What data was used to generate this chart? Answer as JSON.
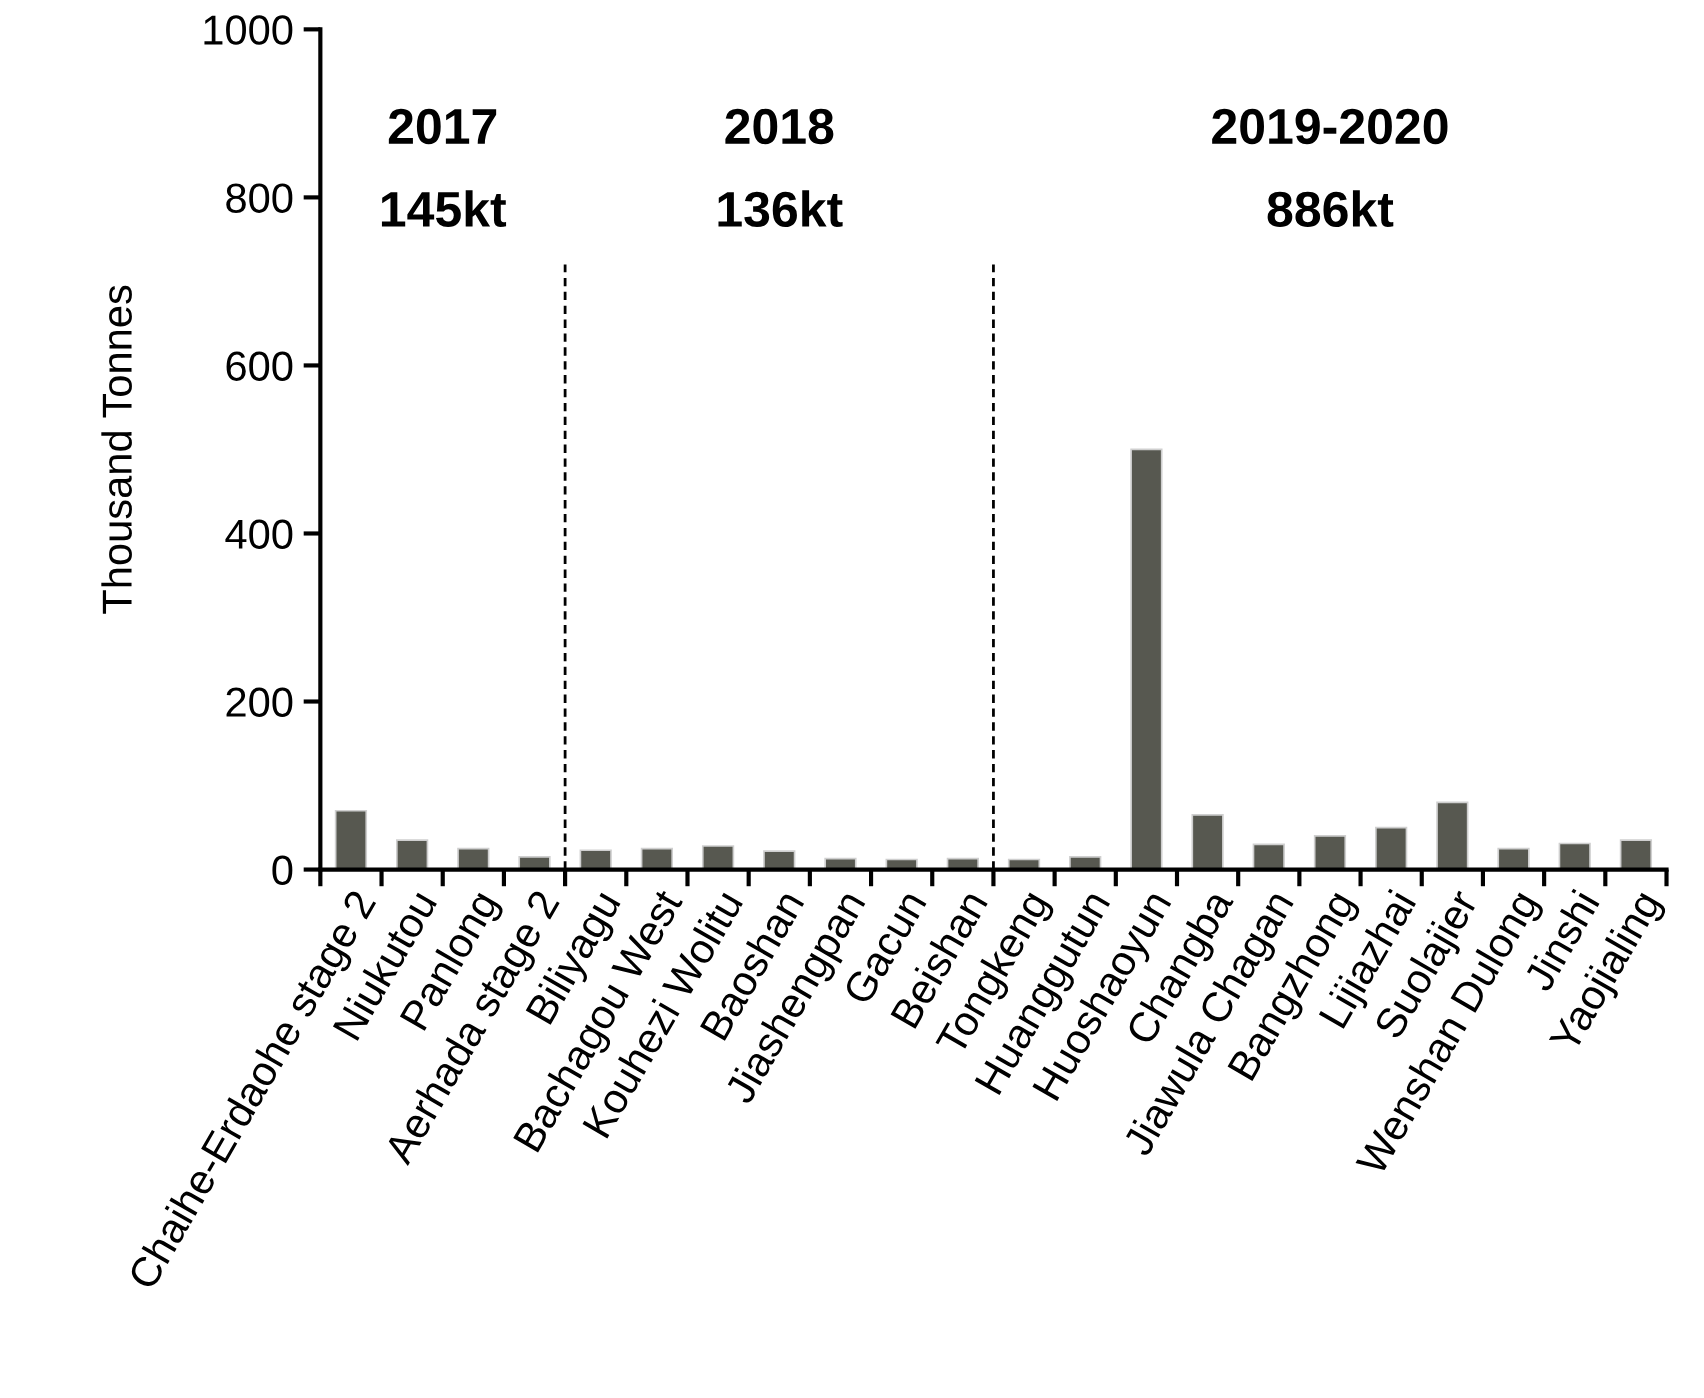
{
  "chart_data": {
    "type": "bar",
    "ylabel": "Thousand Tonnes",
    "categories": [
      "Chaihe-Erdaohe stage 2",
      "Niukutou",
      "Panlong",
      "Aerhada stage 2",
      "Biliyagu",
      "Bachagou West",
      "Kouhezi Wolitu",
      "Baoshan",
      "Jiashengpan",
      "Gacun",
      "Beishan",
      "Tongkeng",
      "Huanggutun",
      "Huoshaoyun",
      "Changba",
      "Jiawula Chagan",
      "Bangzhong",
      "Lijiazhai",
      "Suolajier",
      "Wenshan Dulong",
      "Jinshi",
      "Yaojialing"
    ],
    "values": [
      70,
      35,
      25,
      15,
      23,
      25,
      28,
      22,
      13,
      12,
      13,
      12,
      15,
      500,
      65,
      30,
      40,
      50,
      80,
      25,
      31,
      35
    ],
    "color": "#575850",
    "ylim": [
      0,
      1000
    ],
    "yticks": [
      0,
      200,
      400,
      600,
      800,
      1000
    ],
    "annotations": [
      "2017\n145kt",
      "2018\n136kt",
      "2019-2020\n886kt"
    ]
  }
}
